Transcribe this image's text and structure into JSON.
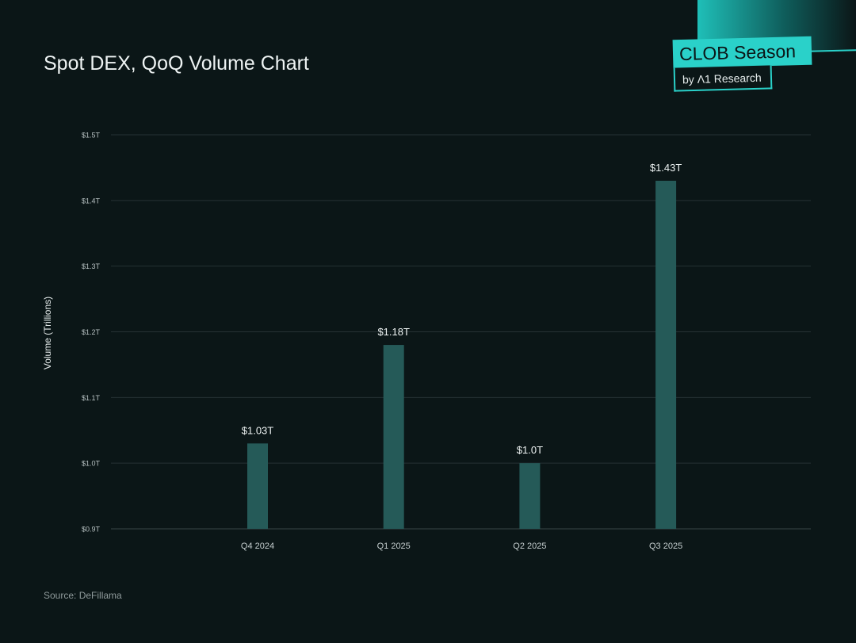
{
  "header": {
    "title": "Spot DEX, QoQ Volume Chart"
  },
  "logo": {
    "main": "CLOB Season",
    "sub": "by Λ1 Research"
  },
  "footer": {
    "source": "Source: DeFillama"
  },
  "colors": {
    "background": "#0b1617",
    "bar": "#255a58",
    "accent": "#2ad1c9"
  },
  "chart_data": {
    "type": "bar",
    "title": "Spot DEX, QoQ Volume Chart",
    "xlabel": "",
    "ylabel": "Volume (Trillions)",
    "categories": [
      "Q4 2024",
      "Q1 2025",
      "Q2 2025",
      "Q3 2025"
    ],
    "values": [
      1.03,
      1.18,
      1.0,
      1.43
    ],
    "data_labels": [
      "$1.03T",
      "$1.18T",
      "$1.0T",
      "$1.43T"
    ],
    "ylim": [
      0.9,
      1.5
    ],
    "yticks": [
      0.9,
      1.0,
      1.1,
      1.2,
      1.3,
      1.4,
      1.5
    ],
    "ytick_labels": [
      "$0.9T",
      "$1.0T",
      "$1.1T",
      "$1.2T",
      "$1.3T",
      "$1.4T",
      "$1.5T"
    ],
    "grid": true,
    "legend": "none"
  }
}
